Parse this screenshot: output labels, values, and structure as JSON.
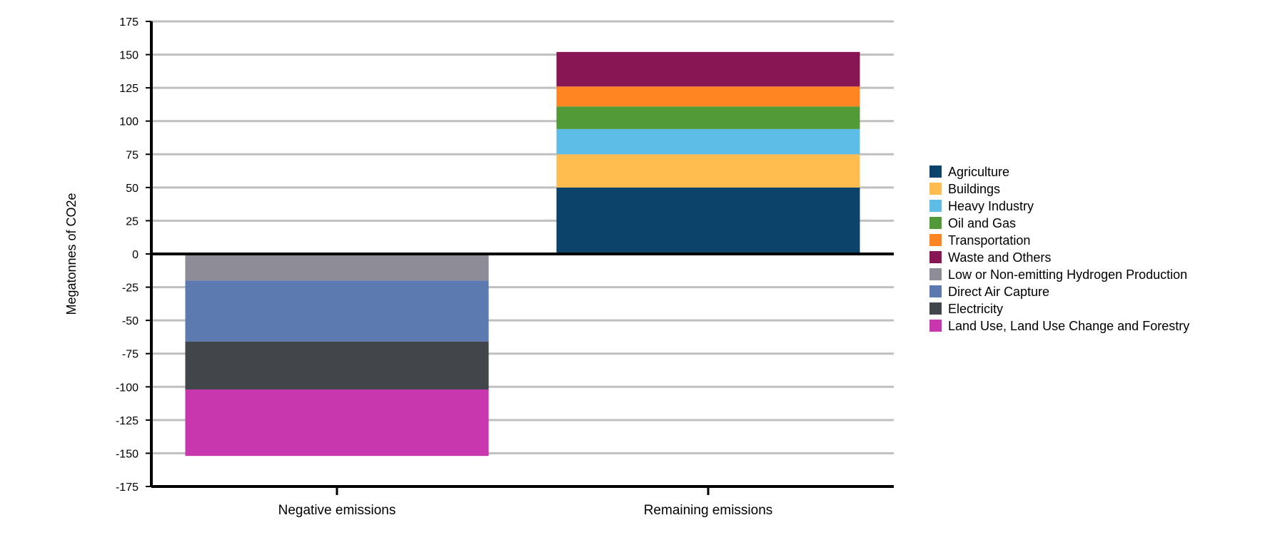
{
  "chart_data": {
    "type": "bar",
    "stacked": true,
    "title": "",
    "xlabel": "",
    "ylabel": "Megatonnes of CO2e",
    "ylim": [
      -175,
      175
    ],
    "yticks": [
      175,
      150,
      125,
      100,
      75,
      50,
      25,
      0,
      -25,
      -50,
      -75,
      -100,
      -125,
      -150,
      -175
    ],
    "grid": true,
    "legend_position": "right",
    "categories": [
      "Negative emissions",
      "Remaining emissions"
    ],
    "series": [
      {
        "name": "Agriculture",
        "color": "#0b436b",
        "values": [
          0,
          50
        ]
      },
      {
        "name": "Buildings",
        "color": "#ffbd4f",
        "values": [
          0,
          25
        ]
      },
      {
        "name": "Heavy Industry",
        "color": "#5ebde6",
        "values": [
          0,
          19
        ]
      },
      {
        "name": "Oil and Gas",
        "color": "#519a37",
        "values": [
          0,
          17
        ]
      },
      {
        "name": "Transportation",
        "color": "#ff8522",
        "values": [
          0,
          15
        ]
      },
      {
        "name": "Waste and Others",
        "color": "#891654",
        "values": [
          0,
          26
        ]
      },
      {
        "name": "Low or Non-emitting Hydrogen Production",
        "color": "#8d8c97",
        "values": [
          -20,
          0
        ]
      },
      {
        "name": "Direct Air Capture",
        "color": "#5c79b0",
        "values": [
          -46,
          0
        ]
      },
      {
        "name": "Electricity",
        "color": "#424549",
        "values": [
          -36,
          0
        ]
      },
      {
        "name": "Land Use, Land Use Change and Forestry",
        "color": "#c837ae",
        "values": [
          -50,
          0
        ]
      }
    ]
  }
}
